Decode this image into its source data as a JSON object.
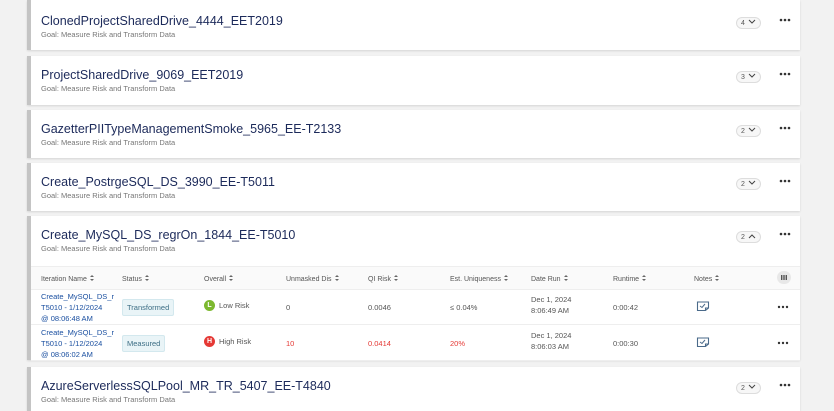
{
  "projects": [
    {
      "title": "ClonedProjectSharedDrive_4444_EET2019",
      "goal": "Goal: Measure Risk and Transform Data",
      "count": "4",
      "expanded": false
    },
    {
      "title": "ProjectSharedDrive_9069_EET2019",
      "goal": "Goal: Measure Risk and Transform Data",
      "count": "3",
      "expanded": false
    },
    {
      "title": "GazetterPIITypeManagementSmoke_5965_EE-T2133",
      "goal": "Goal: Measure Risk and Transform Data",
      "count": "2",
      "expanded": false
    },
    {
      "title": "Create_PostrgeSQL_DS_3990_EE-T5011",
      "goal": "Goal: Measure Risk and Transform Data",
      "count": "2",
      "expanded": false
    },
    {
      "title": "Create_MySQL_DS_regrOn_1844_EE-T5010",
      "goal": "Goal: Measure Risk and Transform Data",
      "count": "2",
      "expanded": true
    },
    {
      "title": "AzureServerlessSQLPool_MR_TR_5407_EE-T4840",
      "goal": "Goal: Measure Risk and Transform Data",
      "count": "2",
      "expanded": false
    }
  ],
  "table": {
    "headers": [
      "Iteration Name",
      "Status",
      "Overall",
      "Unmasked Dis",
      "QI Risk",
      "Est. Uniqueness",
      "Date Run",
      "Runtime",
      "Notes"
    ],
    "rows": [
      {
        "name": [
          "Create_MySQL_DS_r",
          "T5010 - 1/12/2024",
          "@ 08:06:48 AM"
        ],
        "status": "Transformed",
        "overall_letter": "L",
        "overall": "Low Risk",
        "overall_color": "#7cb82f",
        "unmasked": "0",
        "qi_risk": "0.0046",
        "uniqueness": "≤ 0.04%",
        "date": [
          "Dec 1, 2024",
          "8:06:49 AM"
        ],
        "runtime": "0:00:42",
        "value_color": "#555555"
      },
      {
        "name": [
          "Create_MySQL_DS_r",
          "T5010 - 1/12/2024",
          "@ 08:06:02 AM"
        ],
        "status": "Measured",
        "overall_letter": "H",
        "overall": "High Risk",
        "overall_color": "#e53935",
        "unmasked": "10",
        "qi_risk": "0.0414",
        "uniqueness": "20%",
        "date": [
          "Dec 1, 2024",
          "8:06:03 AM"
        ],
        "runtime": "0:00:30",
        "value_color": "#e53935"
      }
    ]
  }
}
